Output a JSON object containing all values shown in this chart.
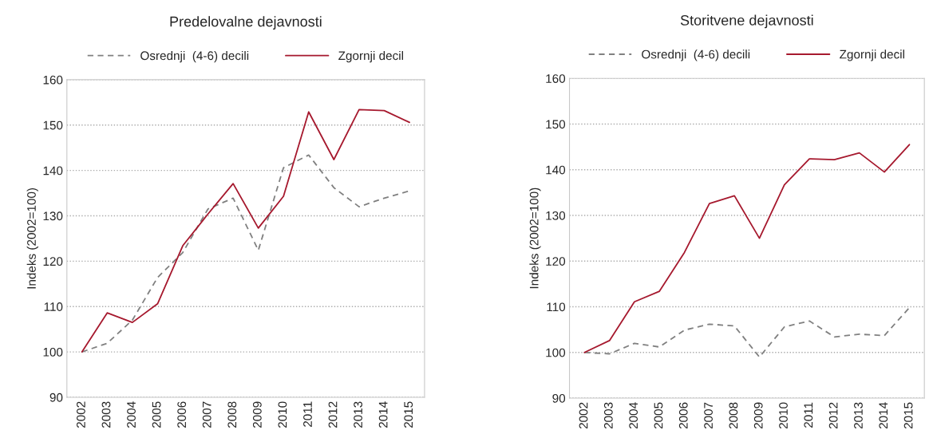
{
  "chart_data": [
    {
      "type": "line",
      "title": "Predelovalne dejavnosti",
      "ylabel": "Indeks (2002=100)",
      "categories": [
        "2002",
        "2003",
        "2004",
        "2005",
        "2006",
        "2007",
        "2008",
        "2009",
        "2010",
        "2011",
        "2012",
        "2013",
        "2014",
        "2015"
      ],
      "series": [
        {
          "name": "Osrednji  (4-6) decili",
          "color": "#808080",
          "line_style": "dashed",
          "values": [
            100,
            101.9,
            107.0,
            116.4,
            121.9,
            131.5,
            133.9,
            122.4,
            140.6,
            143.4,
            136.2,
            132.0,
            133.9,
            135.5
          ]
        },
        {
          "name": "Zgornji decil",
          "color": "#a6192e",
          "line_style": "solid",
          "values": [
            100,
            108.6,
            106.5,
            110.6,
            123.4,
            130.4,
            137.1,
            127.3,
            134.3,
            152.9,
            142.4,
            153.4,
            153.2,
            150.6
          ]
        }
      ],
      "ylim": [
        90,
        160
      ],
      "yticks": [
        90,
        100,
        110,
        120,
        130,
        140,
        150,
        160
      ],
      "grid": "y",
      "legend": "top",
      "marker": "none"
    },
    {
      "type": "line",
      "title": "Storitvene dejavnosti",
      "ylabel": "Indeks (2002=100)",
      "categories": [
        "2002",
        "2003",
        "2004",
        "2005",
        "2006",
        "2007",
        "2008",
        "2009",
        "2010",
        "2011",
        "2012",
        "2013",
        "2014",
        "2015"
      ],
      "series": [
        {
          "name": "Osrednji  (4-6) decili",
          "color": "#808080",
          "line_style": "dashed",
          "values": [
            100,
            99.7,
            102.0,
            101.2,
            104.9,
            106.2,
            105.8,
            99.0,
            105.6,
            106.9,
            103.4,
            104.0,
            103.7,
            109.8
          ]
        },
        {
          "name": "Zgornji decil",
          "color": "#a6192e",
          "line_style": "solid",
          "values": [
            100,
            102.6,
            111.1,
            113.4,
            121.9,
            132.6,
            134.3,
            125.0,
            136.7,
            142.4,
            142.2,
            143.7,
            139.5,
            145.5
          ]
        }
      ],
      "ylim": [
        90,
        160
      ],
      "yticks": [
        90,
        100,
        110,
        120,
        130,
        140,
        150,
        160
      ],
      "grid": "y",
      "legend": "top",
      "marker": "none"
    }
  ]
}
